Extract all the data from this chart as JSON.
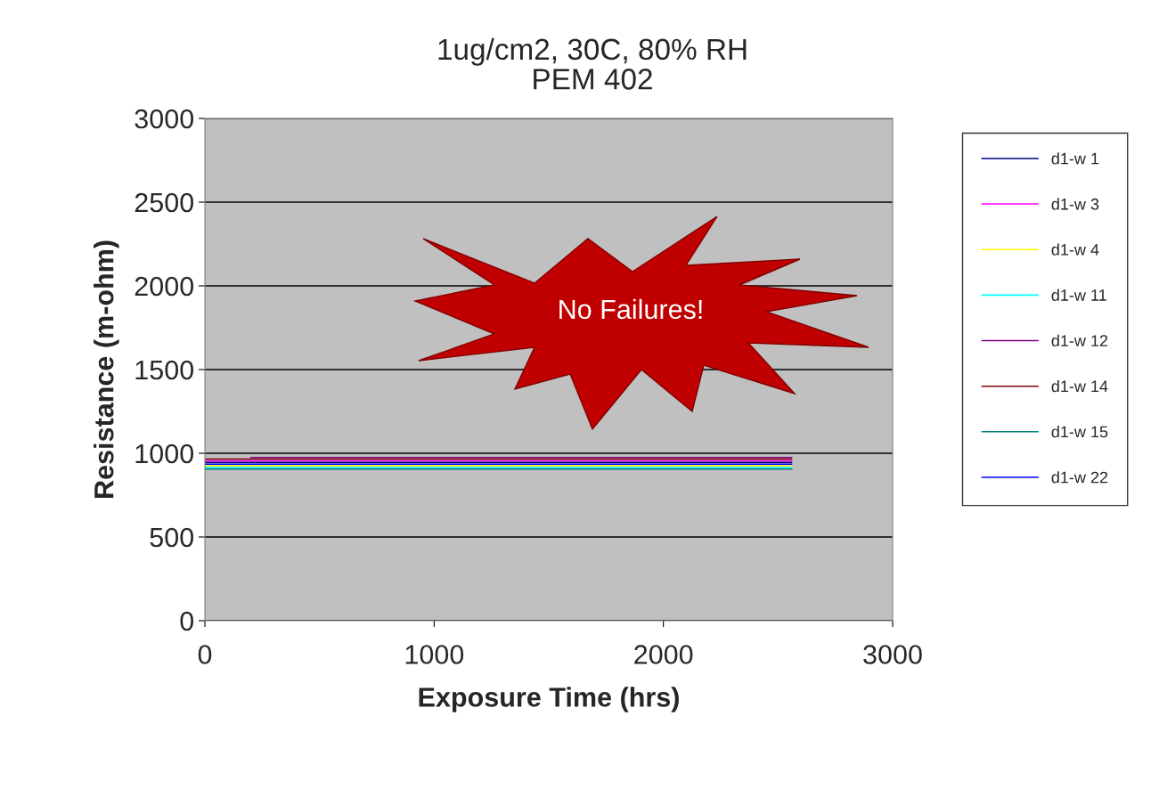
{
  "chart_data": {
    "type": "line",
    "title": "1ug/cm2, 30C, 80% RH\nPEM 402",
    "xlabel": "Exposure Time (hrs)",
    "ylabel": "Resistance (m-ohm)",
    "xlim": [
      0,
      3000
    ],
    "xticks": [
      0,
      1000,
      2000,
      3000
    ],
    "ylim": [
      0,
      3000
    ],
    "yticks": [
      0,
      500,
      1000,
      1500,
      2000,
      2500,
      3000
    ],
    "grid": "y",
    "legend": "right",
    "annotations": [
      "No Failures!"
    ],
    "series": [
      {
        "name": "d1-w 1",
        "color": "#000080",
        "x": [
          0,
          1000,
          2000,
          2560
        ],
        "values": [
          945,
          945,
          945,
          945
        ]
      },
      {
        "name": "d1-w 3",
        "color": "#ff00ff",
        "x": [
          0,
          1000,
          2000,
          2560
        ],
        "values": [
          955,
          955,
          955,
          955
        ]
      },
      {
        "name": "d1-w 4",
        "color": "#ffff00",
        "x": [
          0,
          1000,
          2000,
          2560
        ],
        "values": [
          925,
          925,
          925,
          925
        ]
      },
      {
        "name": "d1-w 11",
        "color": "#00ffff",
        "x": [
          0,
          1000,
          2000,
          2560
        ],
        "values": [
          915,
          915,
          915,
          915
        ]
      },
      {
        "name": "d1-w 12",
        "color": "#800080",
        "x": [
          200,
          1000,
          2000,
          2560
        ],
        "values": [
          975,
          975,
          975,
          975
        ]
      },
      {
        "name": "d1-w 14",
        "color": "#800000",
        "x": [
          0,
          1000,
          2000,
          2560
        ],
        "values": [
          965,
          965,
          965,
          965
        ]
      },
      {
        "name": "d1-w 15",
        "color": "#008080",
        "x": [
          0,
          1000,
          2000,
          2560
        ],
        "values": [
          905,
          905,
          905,
          905
        ]
      },
      {
        "name": "d1-w 22",
        "color": "#0000ff",
        "x": [
          0,
          1000,
          2000,
          2560
        ],
        "values": [
          935,
          935,
          935,
          935
        ]
      }
    ]
  }
}
